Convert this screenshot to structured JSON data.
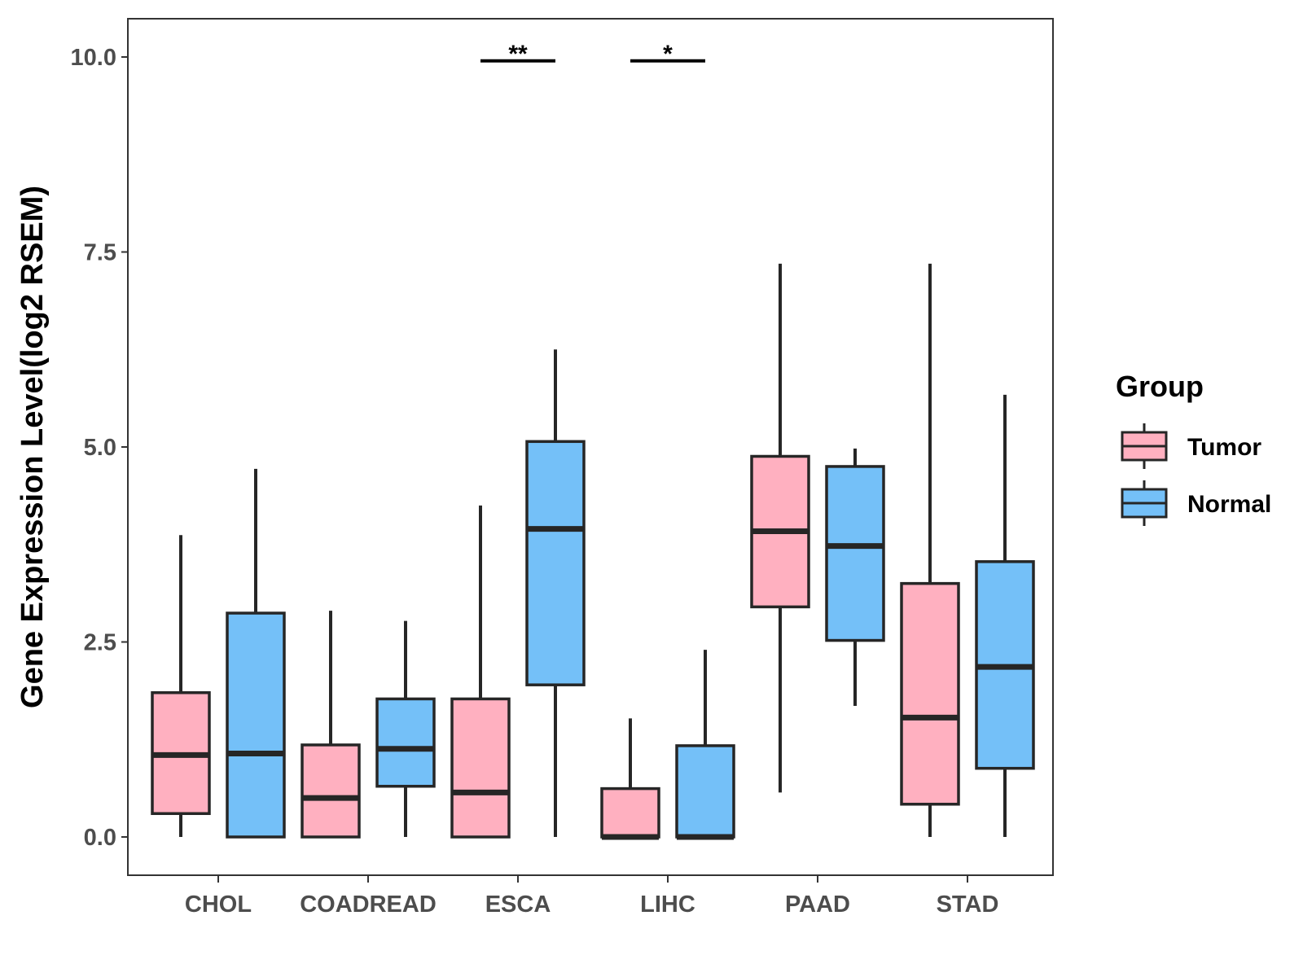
{
  "chart_data": {
    "type": "boxplot",
    "ylabel": "Gene Expression Level(log2 RSEM)",
    "xlabel": "",
    "ylim": [
      -0.5,
      10.5
    ],
    "yticks": [
      0.0,
      2.5,
      5.0,
      7.5,
      10.0
    ],
    "ytick_labels": [
      "0.0",
      "2.5",
      "5.0",
      "7.5",
      "10.0"
    ],
    "categories": [
      "CHOL",
      "COADREAD",
      "ESCA",
      "LIHC",
      "PAAD",
      "STAD"
    ],
    "legend": {
      "title": "Group",
      "position": "right",
      "items": [
        {
          "name": "Tumor",
          "color": "#ffb0c0"
        },
        {
          "name": "Normal",
          "color": "#74c0f8"
        }
      ]
    },
    "series": [
      {
        "name": "Tumor",
        "color": "#ffb0c0",
        "boxes": [
          {
            "min": 0.0,
            "q1": 0.3,
            "median": 1.05,
            "q3": 1.85,
            "max": 3.87
          },
          {
            "min": 0.0,
            "q1": 0.0,
            "median": 0.5,
            "q3": 1.18,
            "max": 2.9
          },
          {
            "min": 0.0,
            "q1": 0.0,
            "median": 0.57,
            "q3": 1.77,
            "max": 4.25
          },
          {
            "min": 0.0,
            "q1": 0.0,
            "median": 0.0,
            "q3": 0.62,
            "max": 1.52
          },
          {
            "min": 0.57,
            "q1": 2.95,
            "median": 3.92,
            "q3": 4.88,
            "max": 7.35
          },
          {
            "min": 0.0,
            "q1": 0.42,
            "median": 1.53,
            "q3": 3.25,
            "max": 7.35
          }
        ]
      },
      {
        "name": "Normal",
        "color": "#74c0f8",
        "boxes": [
          {
            "min": 0.0,
            "q1": 0.0,
            "median": 1.07,
            "q3": 2.87,
            "max": 4.72
          },
          {
            "min": 0.0,
            "q1": 0.65,
            "median": 1.13,
            "q3": 1.77,
            "max": 2.77
          },
          {
            "min": 0.0,
            "q1": 1.95,
            "median": 3.95,
            "q3": 5.07,
            "max": 6.25
          },
          {
            "min": 0.0,
            "q1": 0.0,
            "median": 0.0,
            "q3": 1.17,
            "max": 2.4
          },
          {
            "min": 1.68,
            "q1": 2.52,
            "median": 3.73,
            "q3": 4.75,
            "max": 4.98
          },
          {
            "min": 0.0,
            "q1": 0.88,
            "median": 2.18,
            "q3": 3.53,
            "max": 5.67
          }
        ]
      }
    ],
    "significance": [
      {
        "category": "ESCA",
        "label": "**",
        "y": 9.95
      },
      {
        "category": "LIHC",
        "label": "*",
        "y": 9.95
      }
    ]
  }
}
